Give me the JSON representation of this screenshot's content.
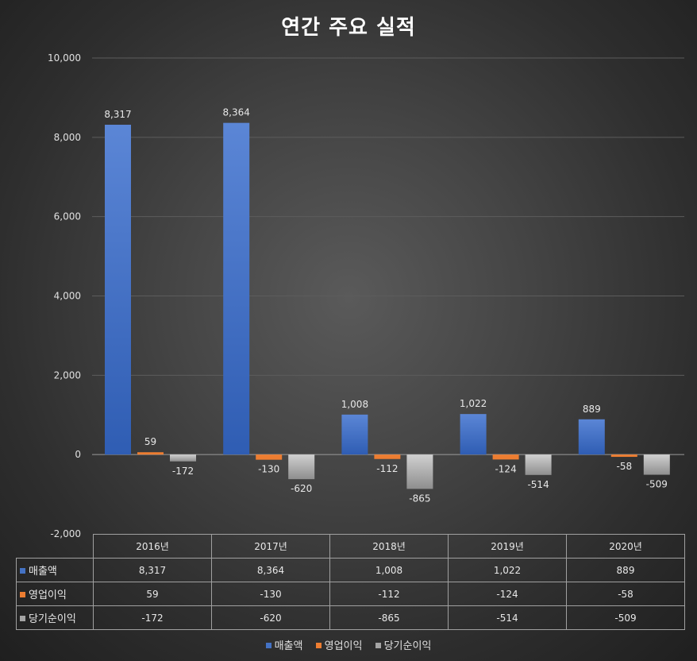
{
  "chart_data": {
    "type": "bar",
    "title": "연간 주요 실적",
    "categories": [
      "2016년",
      "2017년",
      "2018년",
      "2019년",
      "2020년"
    ],
    "series": [
      {
        "name": "매출액",
        "values": [
          8317,
          8364,
          1008,
          1022,
          889
        ],
        "color": "#4472c4"
      },
      {
        "name": "영업이익",
        "values": [
          59,
          -130,
          -112,
          -124,
          -58
        ],
        "color": "#ed7d31"
      },
      {
        "name": "당기순이익",
        "values": [
          -172,
          -620,
          -865,
          -514,
          -509
        ],
        "color": "#a5a5a5"
      }
    ],
    "ylim": [
      -2000,
      10000
    ],
    "yticks": [
      "-2,000",
      "0",
      "2,000",
      "4,000",
      "6,000",
      "8,000",
      "10,000"
    ],
    "data_labels": [
      [
        "8,317",
        "8,364",
        "1,008",
        "1,022",
        "889"
      ],
      [
        "59",
        "-130",
        "-112",
        "-124",
        "-58"
      ],
      [
        "-172",
        "-620",
        "-865",
        "-514",
        "-509"
      ]
    ],
    "grid": true,
    "legend": "bottom",
    "data_table": true
  }
}
